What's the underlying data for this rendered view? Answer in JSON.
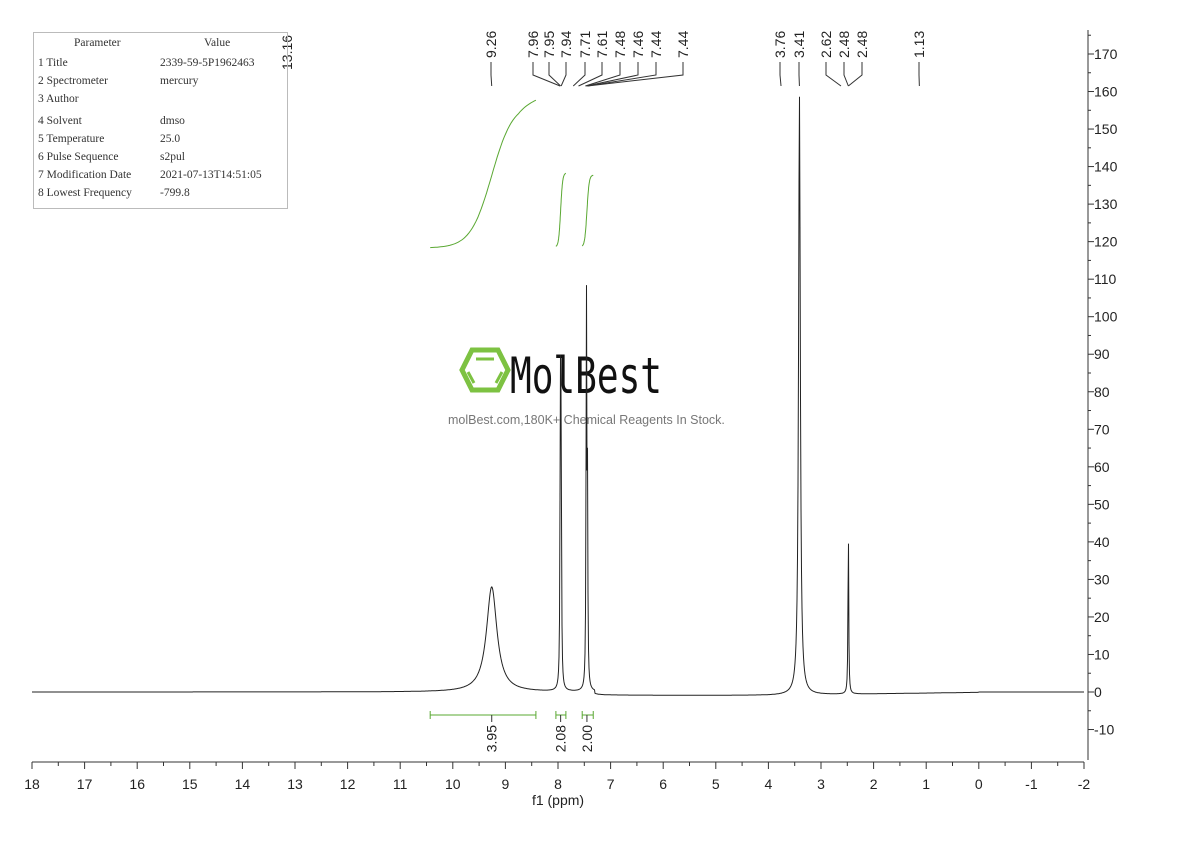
{
  "parameters": {
    "header": {
      "param": "Parameter",
      "value": "Value"
    },
    "rows": [
      {
        "label": "1 Title",
        "value": "2339-59-5P1962463"
      },
      {
        "label": "2 Spectrometer",
        "value": "mercury"
      },
      {
        "label": "3 Author",
        "value": ""
      },
      {
        "label": "4 Solvent",
        "value": "dmso"
      },
      {
        "label": "5 Temperature",
        "value": "25.0"
      },
      {
        "label": "6 Pulse Sequence",
        "value": "s2pul"
      },
      {
        "label": "7 Modification Date",
        "value": "2021-07-13T14:51:05"
      },
      {
        "label": "8 Lowest Frequency",
        "value": "-799.8"
      }
    ]
  },
  "watermark": {
    "logo_text": "MolBest",
    "tagline": "molBest.com,180K+ Chemical Reagents In Stock.",
    "logo_color": "#7dc242"
  },
  "chart_data": {
    "type": "line",
    "xlabel": "f1 (ppm)",
    "xlim": [
      18,
      -2
    ],
    "ylim": [
      -18,
      175
    ],
    "x_ticks": [
      18,
      17,
      16,
      15,
      14,
      13,
      12,
      11,
      10,
      9,
      8,
      7,
      6,
      5,
      4,
      3,
      2,
      1,
      0,
      -1,
      -2
    ],
    "y_ticks": [
      -10,
      0,
      10,
      20,
      30,
      40,
      50,
      60,
      70,
      80,
      90,
      100,
      110,
      120,
      130,
      140,
      150,
      160,
      170
    ],
    "y_axis_side": "right",
    "grid": false,
    "line_color": "#222222",
    "integral_color": "#5aa832",
    "peaks": [
      {
        "ppm": 9.26,
        "height": 28,
        "width": 0.12
      },
      {
        "ppm": 7.955,
        "height": 78,
        "width": 0.008
      },
      {
        "ppm": 7.94,
        "height": 64,
        "width": 0.008
      },
      {
        "ppm": 7.46,
        "height": 105,
        "width": 0.008
      },
      {
        "ppm": 7.44,
        "height": 52,
        "width": 0.008
      },
      {
        "ppm": 3.41,
        "height": 160,
        "width": 0.02
      },
      {
        "ppm": 2.48,
        "height": 45,
        "width": 0.008
      }
    ],
    "peak_labels": [
      "13.16",
      "9.26",
      "7.96",
      "7.95",
      "7.94",
      "7.71",
      "7.61",
      "7.48",
      "7.46",
      "7.44",
      "7.44",
      "3.76",
      "3.41",
      "2.62",
      "2.48",
      "2.48",
      "1.13"
    ],
    "integrals": [
      {
        "from": 10.43,
        "to": 8.42,
        "center": 9.26,
        "value": "3.95"
      },
      {
        "from": 8.04,
        "to": 7.85,
        "center": 7.95,
        "value": "2.08"
      },
      {
        "from": 7.54,
        "to": 7.33,
        "center": 7.45,
        "value": "2.00"
      }
    ]
  }
}
